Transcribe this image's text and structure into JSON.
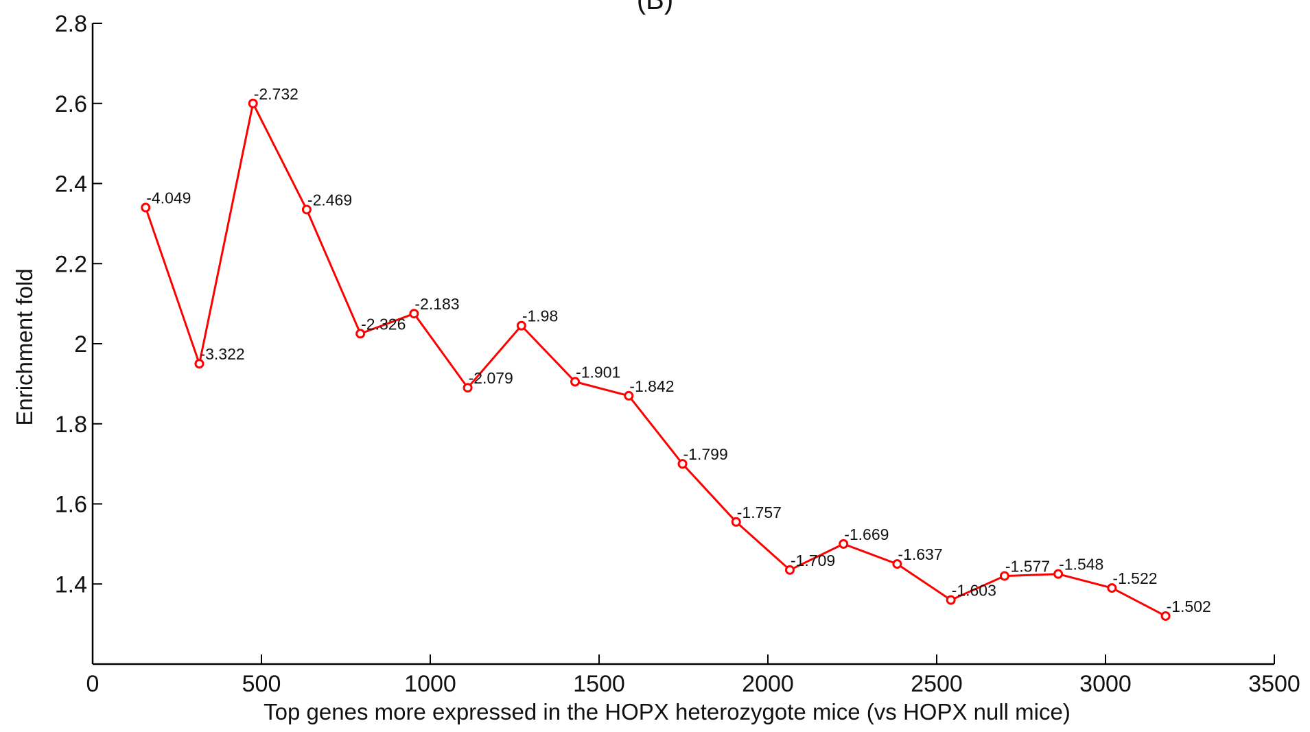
{
  "chart_data": {
    "type": "line",
    "title": "(B)",
    "xlabel": "Top genes more expressed in the HOPX heterozygote mice (vs HOPX null mice)",
    "ylabel": "Enrichment fold",
    "xlim": [
      0,
      3500
    ],
    "ylim": [
      1.2,
      2.8
    ],
    "xticks": [
      0,
      500,
      1000,
      1500,
      2000,
      2500,
      3000,
      3500
    ],
    "xtick_labels": [
      "0",
      "500",
      "1000",
      "1500",
      "2000",
      "2500",
      "3000",
      "3500"
    ],
    "yticks": [
      1.4,
      1.6,
      1.8,
      2.0,
      2.2,
      2.4,
      2.6,
      2.8
    ],
    "ytick_labels": [
      "1.4",
      "1.6",
      "1.8",
      "2",
      "2.2",
      "2.4",
      "2.6",
      "2.8"
    ],
    "grid": false,
    "line_color": "#ff0000",
    "series": [
      {
        "x": [
          157,
          316,
          475,
          634,
          793,
          952,
          1111,
          1270,
          1429,
          1588,
          1747,
          1906,
          2065,
          2224,
          2383,
          2542,
          2701,
          2860,
          3019,
          3178
        ],
        "y": [
          2.34,
          1.95,
          2.6,
          2.335,
          2.025,
          2.075,
          1.89,
          2.045,
          1.905,
          1.87,
          1.7,
          1.555,
          1.435,
          1.5,
          1.45,
          1.36,
          1.42,
          1.425,
          1.39,
          1.32
        ],
        "labels": [
          "-4.049",
          "-3.322",
          "-2.732",
          "-2.469",
          "-2.326",
          "-2.183",
          "-2.079",
          "-1.98",
          "-1.901",
          "-1.842",
          "-1.799",
          "-1.757",
          "-1.709",
          "-1.669",
          "-1.637",
          "-1.603",
          "-1.577",
          "-1.548",
          "-1.522",
          "-1.502"
        ]
      }
    ]
  }
}
